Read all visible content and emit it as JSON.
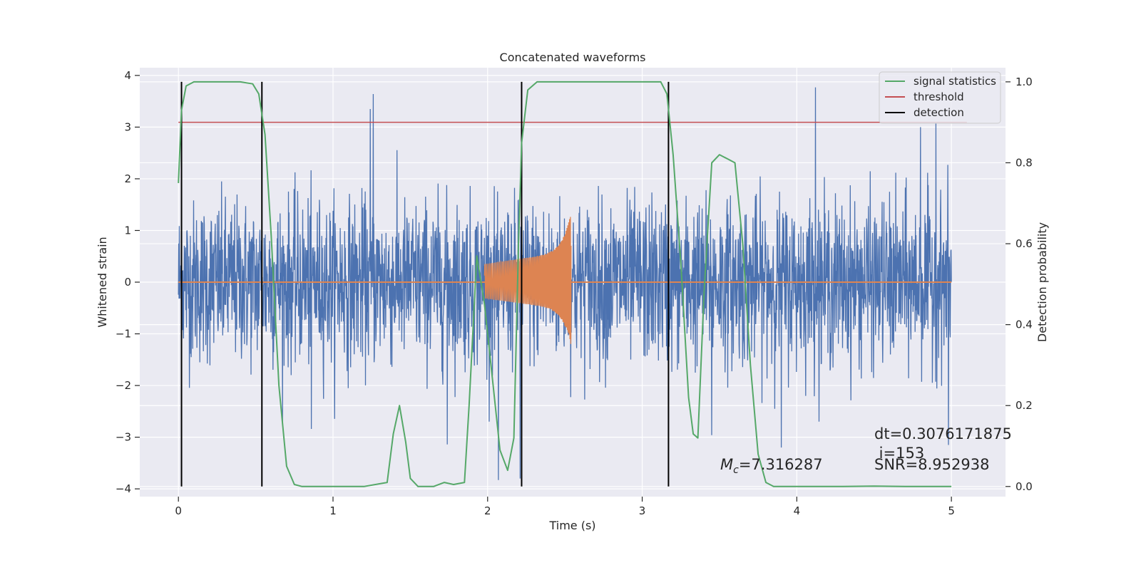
{
  "chart_data": {
    "type": "line",
    "title": "Concatenated waveforms",
    "xlabel": "Time (s)",
    "ylabel": "Whitened strain",
    "y2label": "Detection probability",
    "xlim": [
      -0.25,
      5.35
    ],
    "ylim": [
      -4.15,
      4.15
    ],
    "y2lim": [
      -0.025,
      1.035
    ],
    "x_ticks": [
      0,
      1,
      2,
      3,
      4,
      5
    ],
    "x_tick_labels": [
      "0",
      "1",
      "2",
      "3",
      "4",
      "5"
    ],
    "y_ticks": [
      -4,
      -3,
      -2,
      -1,
      0,
      1,
      2,
      3,
      4
    ],
    "y_tick_labels": [
      "−4",
      "−3",
      "−2",
      "−1",
      "0",
      "1",
      "2",
      "3",
      "4"
    ],
    "y2_ticks": [
      0.0,
      0.2,
      0.4,
      0.6,
      0.8,
      1.0
    ],
    "y2_tick_labels": [
      "0.0",
      "0.2",
      "0.4",
      "0.6",
      "0.8",
      "1.0"
    ],
    "grid": true,
    "legend_position": "top-right",
    "colors": {
      "noise": "#4c72b0",
      "waveform": "#dd8452",
      "signal_statistics": "#55a868",
      "threshold": "#c44e52",
      "detection": "#000000",
      "plot_background": "#eaeaf2",
      "grid": "#ffffff"
    },
    "series": [
      {
        "name": "signal statistics",
        "axis": "right",
        "x": [
          0.0,
          0.02,
          0.05,
          0.1,
          0.2,
          0.3,
          0.4,
          0.48,
          0.52,
          0.56,
          0.6,
          0.65,
          0.7,
          0.75,
          0.8,
          1.0,
          1.2,
          1.35,
          1.39,
          1.43,
          1.47,
          1.5,
          1.55,
          1.65,
          1.72,
          1.78,
          1.85,
          1.88,
          1.93,
          1.98,
          2.03,
          2.08,
          2.13,
          2.17,
          2.2,
          2.22,
          2.26,
          2.32,
          2.4,
          2.6,
          2.8,
          3.0,
          3.12,
          3.16,
          3.2,
          3.25,
          3.3,
          3.33,
          3.36,
          3.4,
          3.45,
          3.5,
          3.55,
          3.6,
          3.65,
          3.7,
          3.75,
          3.8,
          3.85,
          3.9,
          4.0,
          4.3,
          4.5,
          4.7,
          5.0
        ],
        "y": [
          0.75,
          0.93,
          0.99,
          1.0,
          1.0,
          1.0,
          1.0,
          0.995,
          0.97,
          0.87,
          0.62,
          0.25,
          0.05,
          0.005,
          0.0,
          0.0,
          0.0,
          0.01,
          0.13,
          0.2,
          0.11,
          0.02,
          0.0,
          0.0,
          0.01,
          0.005,
          0.01,
          0.2,
          0.57,
          0.45,
          0.27,
          0.09,
          0.04,
          0.12,
          0.6,
          0.85,
          0.98,
          1.0,
          1.0,
          1.0,
          1.0,
          1.0,
          1.0,
          0.97,
          0.82,
          0.55,
          0.22,
          0.13,
          0.12,
          0.48,
          0.8,
          0.82,
          0.81,
          0.8,
          0.6,
          0.3,
          0.08,
          0.01,
          0.0,
          0.0,
          0.0,
          0.0,
          0.001,
          0.0,
          0.0
        ]
      },
      {
        "name": "threshold",
        "axis": "right",
        "x": [
          0.0,
          5.1
        ],
        "y": [
          0.9,
          0.9
        ]
      },
      {
        "name": "detection",
        "axis": "right",
        "vertical_lines_x": [
          0.02,
          0.54,
          2.22,
          3.17
        ],
        "y_range": [
          0.0,
          1.0
        ]
      },
      {
        "name": "",
        "axis": "left",
        "description_type": "noise",
        "x_range": [
          0.0,
          5.0
        ],
        "envelope_typical": 1.2,
        "max_spikes": [
          [
            1.26,
            3.64
          ],
          [
            1.24,
            3.35
          ],
          [
            4.12,
            3.77
          ],
          [
            4.9,
            3.1
          ],
          [
            4.8,
            3.0
          ],
          [
            2.07,
            -3.83
          ],
          [
            2.21,
            -3.8
          ],
          [
            0.86,
            -2.84
          ],
          [
            1.74,
            -3.14
          ],
          [
            3.45,
            -2.96
          ],
          [
            3.9,
            -3.2
          ],
          [
            4.98,
            -3.15
          ]
        ]
      },
      {
        "name": "",
        "axis": "left",
        "description_type": "chirp",
        "x_range": [
          1.98,
          2.54
        ],
        "amplitude_start": 0.35,
        "amplitude_peak": 1.35,
        "amplitude_min": -1.22
      }
    ],
    "annotations": {
      "mc_symbol": "M",
      "mc_subscript": "c",
      "mc_value": "=7.316287",
      "dt": "dt=0.3076171875",
      "i": " i=153",
      "snr": "SNR=8.952938"
    }
  }
}
